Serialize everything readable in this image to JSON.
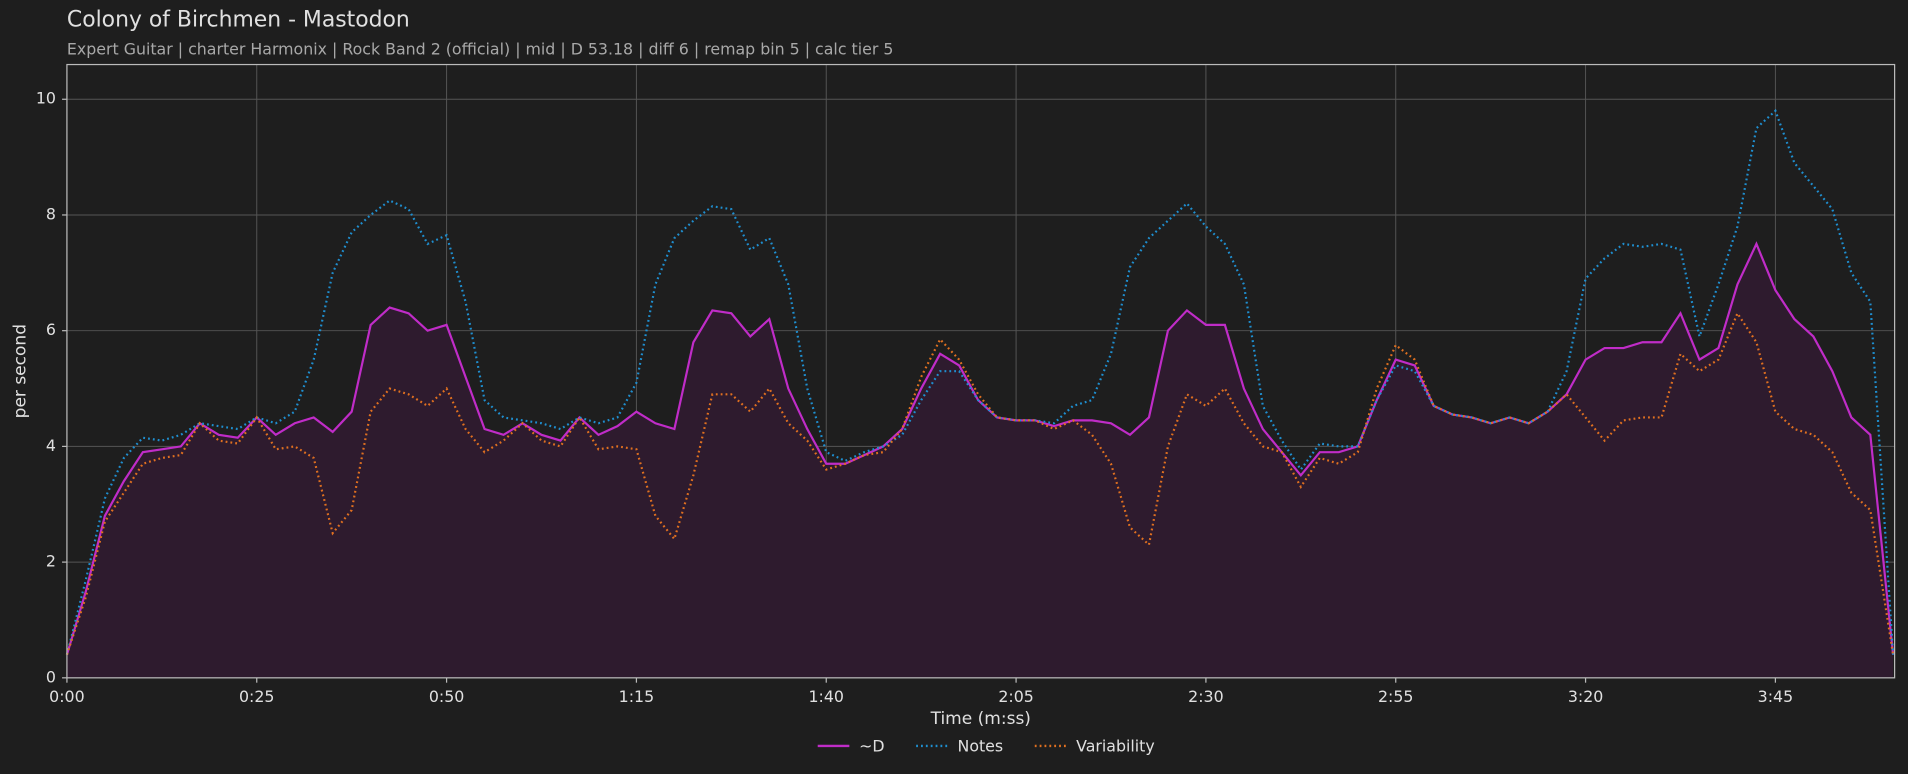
{
  "chart_data": {
    "type": "line",
    "title": "Colony of Birchmen - Mastodon",
    "subtitle": "Expert Guitar  |  charter Harmonix  |  Rock Band 2 (official)  |  mid  |  D 53.18  |  diff 6  |  remap bin 5  |  calc tier 5",
    "x_label": "Time (m:ss)",
    "y_label": "per second",
    "x": [
      0,
      2.5,
      5,
      7.5,
      10,
      12.5,
      15,
      17.5,
      20,
      22.5,
      25,
      27.5,
      30,
      32.5,
      35,
      37.5,
      40,
      42.5,
      45,
      47.5,
      50,
      52.5,
      55,
      57.5,
      60,
      62.5,
      65,
      67.5,
      70,
      72.5,
      75,
      77.5,
      80,
      82.5,
      85,
      87.5,
      90,
      92.5,
      95,
      97.5,
      100,
      102.5,
      105,
      107.5,
      110,
      112.5,
      115,
      117.5,
      120,
      122.5,
      125,
      127.5,
      130,
      132.5,
      135,
      137.5,
      140,
      142.5,
      145,
      147.5,
      150,
      152.5,
      155,
      157.5,
      160,
      162.5,
      165,
      167.5,
      170,
      172.5,
      175,
      177.5,
      180,
      182.5,
      185,
      187.5,
      190,
      192.5,
      195,
      197.5,
      200,
      202.5,
      205,
      207.5,
      210,
      212.5,
      215,
      217.5,
      220,
      222.5,
      225,
      227.5,
      230,
      232.5,
      235,
      237.5,
      240.5
    ],
    "series": [
      {
        "name": "~D",
        "color": "#c02cc8",
        "dash": "solid",
        "fill": "#2e1b2e",
        "values": [
          0.4,
          1.5,
          2.8,
          3.4,
          3.9,
          3.95,
          4.0,
          4.4,
          4.2,
          4.15,
          4.5,
          4.2,
          4.4,
          4.5,
          4.25,
          4.6,
          6.1,
          6.4,
          6.3,
          6.0,
          6.1,
          5.2,
          4.3,
          4.2,
          4.4,
          4.2,
          4.1,
          4.5,
          4.2,
          4.35,
          4.6,
          4.4,
          4.3,
          5.8,
          6.35,
          6.3,
          5.9,
          6.2,
          5.0,
          4.3,
          3.7,
          3.7,
          3.85,
          4.0,
          4.3,
          5.0,
          5.6,
          5.4,
          4.8,
          4.5,
          4.45,
          4.45,
          4.35,
          4.45,
          4.45,
          4.4,
          4.2,
          4.5,
          6.0,
          6.35,
          6.1,
          6.1,
          5.0,
          4.3,
          3.9,
          3.5,
          3.9,
          3.9,
          4.0,
          4.8,
          5.5,
          5.4,
          4.7,
          4.55,
          4.5,
          4.4,
          4.5,
          4.4,
          4.6,
          4.9,
          5.5,
          5.7,
          5.7,
          5.8,
          5.8,
          6.3,
          5.5,
          5.7,
          6.8,
          7.5,
          6.7,
          6.2,
          5.9,
          5.3,
          4.5,
          4.2,
          0.4
        ]
      },
      {
        "name": "Notes",
        "color": "#1f8fd0",
        "dash": "dotted",
        "values": [
          0.4,
          1.7,
          3.1,
          3.8,
          4.15,
          4.1,
          4.2,
          4.4,
          4.35,
          4.3,
          4.5,
          4.4,
          4.6,
          5.5,
          7.0,
          7.7,
          8.0,
          8.25,
          8.1,
          7.5,
          7.65,
          6.5,
          4.8,
          4.5,
          4.45,
          4.4,
          4.3,
          4.5,
          4.4,
          4.5,
          5.1,
          6.8,
          7.6,
          7.9,
          8.15,
          8.1,
          7.4,
          7.6,
          6.8,
          5.0,
          3.9,
          3.75,
          3.9,
          4.0,
          4.2,
          4.8,
          5.3,
          5.3,
          4.8,
          4.5,
          4.45,
          4.45,
          4.4,
          4.7,
          4.8,
          5.6,
          7.1,
          7.6,
          7.9,
          8.2,
          7.8,
          7.5,
          6.8,
          4.7,
          4.1,
          3.6,
          4.05,
          4.0,
          4.0,
          4.8,
          5.4,
          5.3,
          4.7,
          4.55,
          4.5,
          4.4,
          4.5,
          4.4,
          4.6,
          5.3,
          6.9,
          7.25,
          7.5,
          7.45,
          7.5,
          7.4,
          5.9,
          6.8,
          7.8,
          9.5,
          9.8,
          8.9,
          8.5,
          8.1,
          7.0,
          6.5,
          0.4
        ]
      },
      {
        "name": "Variability",
        "color": "#e07020",
        "dash": "dotted",
        "values": [
          0.4,
          1.4,
          2.7,
          3.2,
          3.7,
          3.8,
          3.85,
          4.4,
          4.1,
          4.05,
          4.5,
          3.95,
          4.0,
          3.8,
          2.5,
          2.9,
          4.6,
          5.0,
          4.9,
          4.7,
          5.0,
          4.3,
          3.9,
          4.1,
          4.4,
          4.1,
          4.0,
          4.5,
          3.95,
          4.0,
          3.95,
          2.8,
          2.4,
          3.5,
          4.9,
          4.9,
          4.6,
          5.0,
          4.4,
          4.1,
          3.6,
          3.7,
          3.85,
          3.9,
          4.3,
          5.2,
          5.85,
          5.5,
          4.9,
          4.5,
          4.45,
          4.45,
          4.3,
          4.45,
          4.2,
          3.7,
          2.6,
          2.3,
          4.0,
          4.9,
          4.7,
          5.0,
          4.4,
          4.0,
          3.9,
          3.3,
          3.8,
          3.7,
          3.9,
          5.0,
          5.75,
          5.5,
          4.7,
          4.55,
          4.5,
          4.4,
          4.5,
          4.4,
          4.6,
          4.9,
          4.5,
          4.1,
          4.45,
          4.5,
          4.5,
          5.6,
          5.3,
          5.5,
          6.3,
          5.8,
          4.6,
          4.3,
          4.2,
          3.9,
          3.2,
          2.9,
          0.4
        ]
      }
    ],
    "xlim": [
      0,
      240.7
    ],
    "ylim": [
      0,
      10.6
    ],
    "xticks": [
      {
        "value": 0,
        "label": "0:00"
      },
      {
        "value": 25,
        "label": "0:25"
      },
      {
        "value": 50,
        "label": "0:50"
      },
      {
        "value": 75,
        "label": "1:15"
      },
      {
        "value": 100,
        "label": "1:40"
      },
      {
        "value": 125,
        "label": "2:05"
      },
      {
        "value": 150,
        "label": "2:30"
      },
      {
        "value": 175,
        "label": "2:55"
      },
      {
        "value": 200,
        "label": "3:20"
      },
      {
        "value": 225,
        "label": "3:45"
      }
    ],
    "yticks": [
      0,
      2,
      4,
      6,
      8,
      10
    ],
    "grid": true,
    "legend": "bottom"
  }
}
